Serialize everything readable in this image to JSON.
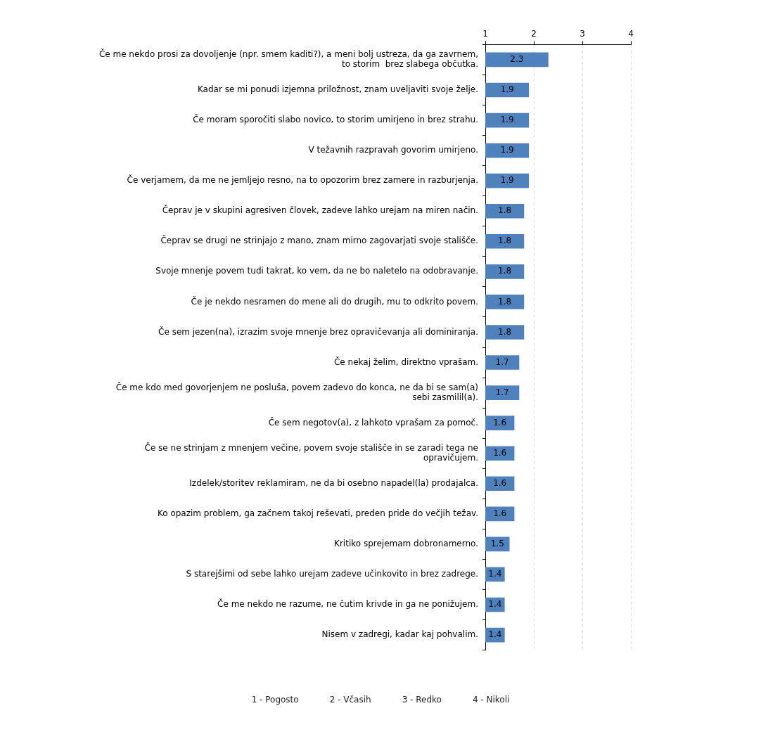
{
  "chart_data": {
    "type": "bar",
    "orientation": "horizontal",
    "categories": [
      "Če me nekdo prosi za dovoljenje (npr. smem kaditi?), a meni bolj ustreza, da ga zavrnem, to storim  brez slabega občutka.",
      "Kadar se mi ponudi izjemna priložnost, znam uveljaviti svoje želje.",
      "Če moram sporočiti slabo novico, to storim umirjeno in brez strahu.",
      "V težavnih razpravah govorim umirjeno.",
      "Če verjamem, da me ne jemljejo resno, na to opozorim brez zamere in razburjenja.",
      "Čeprav je v skupini agresiven človek, zadeve lahko urejam na miren način.",
      "Čeprav se drugi ne strinjajo z mano, znam mirno zagovarjati svoje stališče.",
      "Svoje mnenje povem tudi takrat, ko vem, da ne bo naletelo na odobravanje.",
      "Če je nekdo nesramen do mene ali do drugih, mu to odkrito povem.",
      "Če sem jezen(na), izrazim svoje mnenje brez opravičevanja ali dominiranja.",
      "Če nekaj želim, direktno vprašam.",
      "Če me kdo med govorjenjem ne posluša, povem zadevo do konca, ne da bi se sam(a) sebi zasmilil(a).",
      "Če sem negotov(a), z lahkoto vprašam za pomoč.",
      "Če se ne strinjam z mnenjem večine, povem svoje stališče in se zaradi tega ne opravičujem.",
      "Izdelek/storitev reklamiram, ne da bi osebno napadel(la) prodajalca.",
      "Ko opazim problem, ga začnem takoj reševati, preden pride do večjih težav.",
      "Kritiko sprejemam dobronamerno.",
      "S starejšimi od sebe lahko urejam zadeve učinkovito in brez zadrege.",
      "Če me nekdo ne razume, ne čutim krivde in ga ne ponižujem.",
      "Nisem v zadregi, kadar kaj pohvalim."
    ],
    "values": [
      2.3,
      1.9,
      1.9,
      1.9,
      1.9,
      1.8,
      1.8,
      1.8,
      1.8,
      1.8,
      1.7,
      1.7,
      1.6,
      1.6,
      1.6,
      1.6,
      1.5,
      1.4,
      1.4,
      1.4
    ],
    "color": "#4f81bd",
    "xlim": [
      1,
      4
    ],
    "xticks": [
      1,
      2,
      3,
      4
    ],
    "grid": "x",
    "data_labels": true,
    "annotations": [
      "1 - Pogosto",
      "2 - Včasih",
      "3 - Redko",
      "4 - Nikoli"
    ]
  }
}
